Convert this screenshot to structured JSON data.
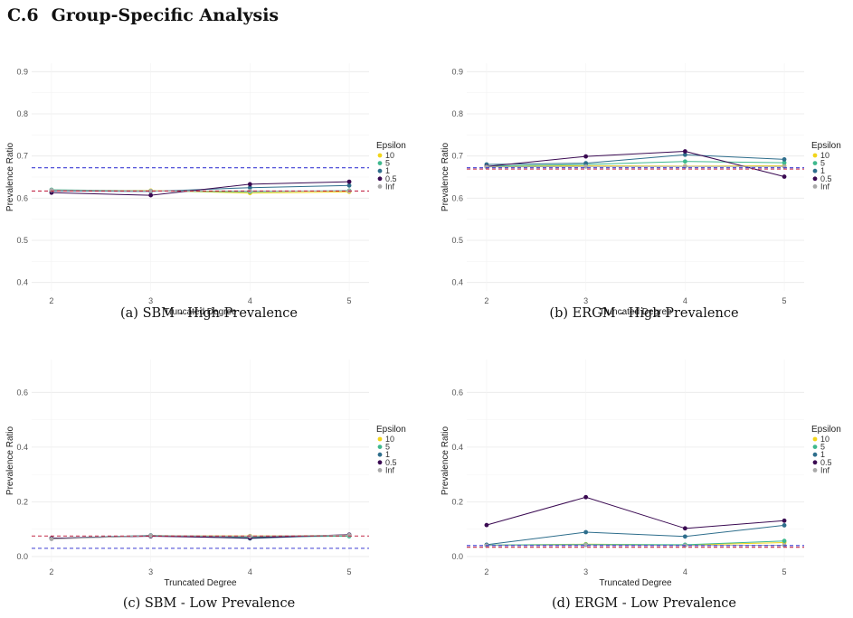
{
  "section": {
    "number": "C.6",
    "title": "Group-Specific Analysis"
  },
  "legend_colors": {
    "10": "#f2d51a",
    "5": "#3fb98e",
    "1": "#2e6e8c",
    "0.5": "#3a0a52",
    "Inf": "#a9a9a9"
  },
  "chart_data": [
    {
      "type": "line",
      "caption": "(a) SBM - High Prevalence",
      "xlabel": "Truncated Degree",
      "ylabel": "Prevalence Ratio",
      "x": [
        2,
        3,
        4,
        5
      ],
      "x_ticks": [
        "2",
        "3",
        "4",
        "5"
      ],
      "ylim": [
        0.38,
        0.92
      ],
      "y_ticks": [
        0.4,
        0.5,
        0.6,
        0.7,
        0.8,
        0.9
      ],
      "y_tick_labels": [
        "0.4",
        "0.5",
        "0.6",
        "0.7",
        "0.8",
        "0.9"
      ],
      "legend_title": "Epsilon",
      "legend_position": "right",
      "series": [
        {
          "name": "10",
          "color": "#f2d51a",
          "values": [
            0.618,
            0.618,
            0.612,
            0.615
          ]
        },
        {
          "name": "5",
          "color": "#3fb98e",
          "values": [
            0.62,
            0.617,
            0.615,
            0.618
          ]
        },
        {
          "name": "1",
          "color": "#2e6e8c",
          "values": [
            0.617,
            0.616,
            0.625,
            0.63
          ]
        },
        {
          "name": "0.5",
          "color": "#3a0a52",
          "values": [
            0.613,
            0.607,
            0.633,
            0.639
          ]
        },
        {
          "name": "Inf",
          "color": "#a9a9a9",
          "values": [
            0.619,
            0.617,
            0.617,
            0.617
          ]
        }
      ],
      "hlines": [
        {
          "y": 0.672,
          "color": "#3c3cd4"
        },
        {
          "y": 0.617,
          "color": "#c42a48"
        }
      ]
    },
    {
      "type": "line",
      "caption": "(b) ERGM - High Prevalence",
      "xlabel": "Truncated Degree",
      "ylabel": "Prevalence Ratio",
      "x": [
        2,
        3,
        4,
        5
      ],
      "x_ticks": [
        "2",
        "3",
        "4",
        "5"
      ],
      "ylim": [
        0.38,
        0.92
      ],
      "y_ticks": [
        0.4,
        0.5,
        0.6,
        0.7,
        0.8,
        0.9
      ],
      "y_tick_labels": [
        "0.4",
        "0.5",
        "0.6",
        "0.7",
        "0.8",
        "0.9"
      ],
      "legend_title": "Epsilon",
      "legend_position": "right",
      "series": [
        {
          "name": "10",
          "color": "#f2d51a",
          "values": [
            0.675,
            0.677,
            0.676,
            0.677
          ]
        },
        {
          "name": "5",
          "color": "#3fb98e",
          "values": [
            0.676,
            0.68,
            0.687,
            0.684
          ]
        },
        {
          "name": "1",
          "color": "#2e6e8c",
          "values": [
            0.68,
            0.683,
            0.703,
            0.692
          ]
        },
        {
          "name": "0.5",
          "color": "#3a0a52",
          "values": [
            0.675,
            0.699,
            0.711,
            0.651
          ]
        },
        {
          "name": "Inf",
          "color": "#a9a9a9",
          "values": [
            0.674,
            0.675,
            0.675,
            0.675
          ]
        }
      ],
      "hlines": [
        {
          "y": 0.672,
          "color": "#3c3cd4"
        },
        {
          "y": 0.669,
          "color": "#c42a48"
        }
      ]
    },
    {
      "type": "line",
      "caption": "(c) SBM - Low Prevalence",
      "xlabel": "Truncated Degree",
      "ylabel": "Prevalence Ratio",
      "x": [
        2,
        3,
        4,
        5
      ],
      "x_ticks": [
        "2",
        "3",
        "4",
        "5"
      ],
      "ylim": [
        -0.02,
        0.72
      ],
      "y_ticks": [
        0.0,
        0.2,
        0.4,
        0.6
      ],
      "y_tick_labels": [
        "0.0",
        "0.2",
        "0.4",
        "0.6"
      ],
      "legend_title": "Epsilon",
      "legend_position": "right",
      "series": [
        {
          "name": "10",
          "color": "#f2d51a",
          "values": [
            0.066,
            0.076,
            0.075,
            0.077
          ]
        },
        {
          "name": "5",
          "color": "#3fb98e",
          "values": [
            0.065,
            0.077,
            0.072,
            0.074
          ]
        },
        {
          "name": "1",
          "color": "#2e6e8c",
          "values": [
            0.066,
            0.077,
            0.066,
            0.079
          ]
        },
        {
          "name": "0.5",
          "color": "#3a0a52",
          "values": [
            0.067,
            0.074,
            0.068,
            0.08
          ]
        },
        {
          "name": "Inf",
          "color": "#a9a9a9",
          "values": [
            0.064,
            0.076,
            0.074,
            0.078
          ]
        }
      ],
      "hlines": [
        {
          "y": 0.03,
          "color": "#3c3cd4"
        },
        {
          "y": 0.075,
          "color": "#c42a48"
        }
      ]
    },
    {
      "type": "line",
      "caption": "(d) ERGM - Low Prevalence",
      "xlabel": "Truncated Degree",
      "ylabel": "Prevalence Ratio",
      "x": [
        2,
        3,
        4,
        5
      ],
      "x_ticks": [
        "2",
        "3",
        "4",
        "5"
      ],
      "ylim": [
        -0.02,
        0.72
      ],
      "y_ticks": [
        0.0,
        0.2,
        0.4,
        0.6
      ],
      "y_tick_labels": [
        "0.0",
        "0.2",
        "0.4",
        "0.6"
      ],
      "legend_title": "Epsilon",
      "legend_position": "right",
      "series": [
        {
          "name": "10",
          "color": "#f2d51a",
          "values": [
            0.041,
            0.045,
            0.042,
            0.051
          ]
        },
        {
          "name": "5",
          "color": "#3fb98e",
          "values": [
            0.042,
            0.044,
            0.043,
            0.057
          ]
        },
        {
          "name": "1",
          "color": "#2e6e8c",
          "values": [
            0.043,
            0.089,
            0.073,
            0.114
          ]
        },
        {
          "name": "0.5",
          "color": "#3a0a52",
          "values": [
            0.115,
            0.217,
            0.103,
            0.131
          ]
        },
        {
          "name": "Inf",
          "color": "#a9a9a9",
          "values": [
            0.04,
            0.042,
            0.04,
            0.041
          ]
        }
      ],
      "hlines": [
        {
          "y": 0.04,
          "color": "#3c3cd4"
        },
        {
          "y": 0.034,
          "color": "#c42a48"
        }
      ]
    }
  ]
}
